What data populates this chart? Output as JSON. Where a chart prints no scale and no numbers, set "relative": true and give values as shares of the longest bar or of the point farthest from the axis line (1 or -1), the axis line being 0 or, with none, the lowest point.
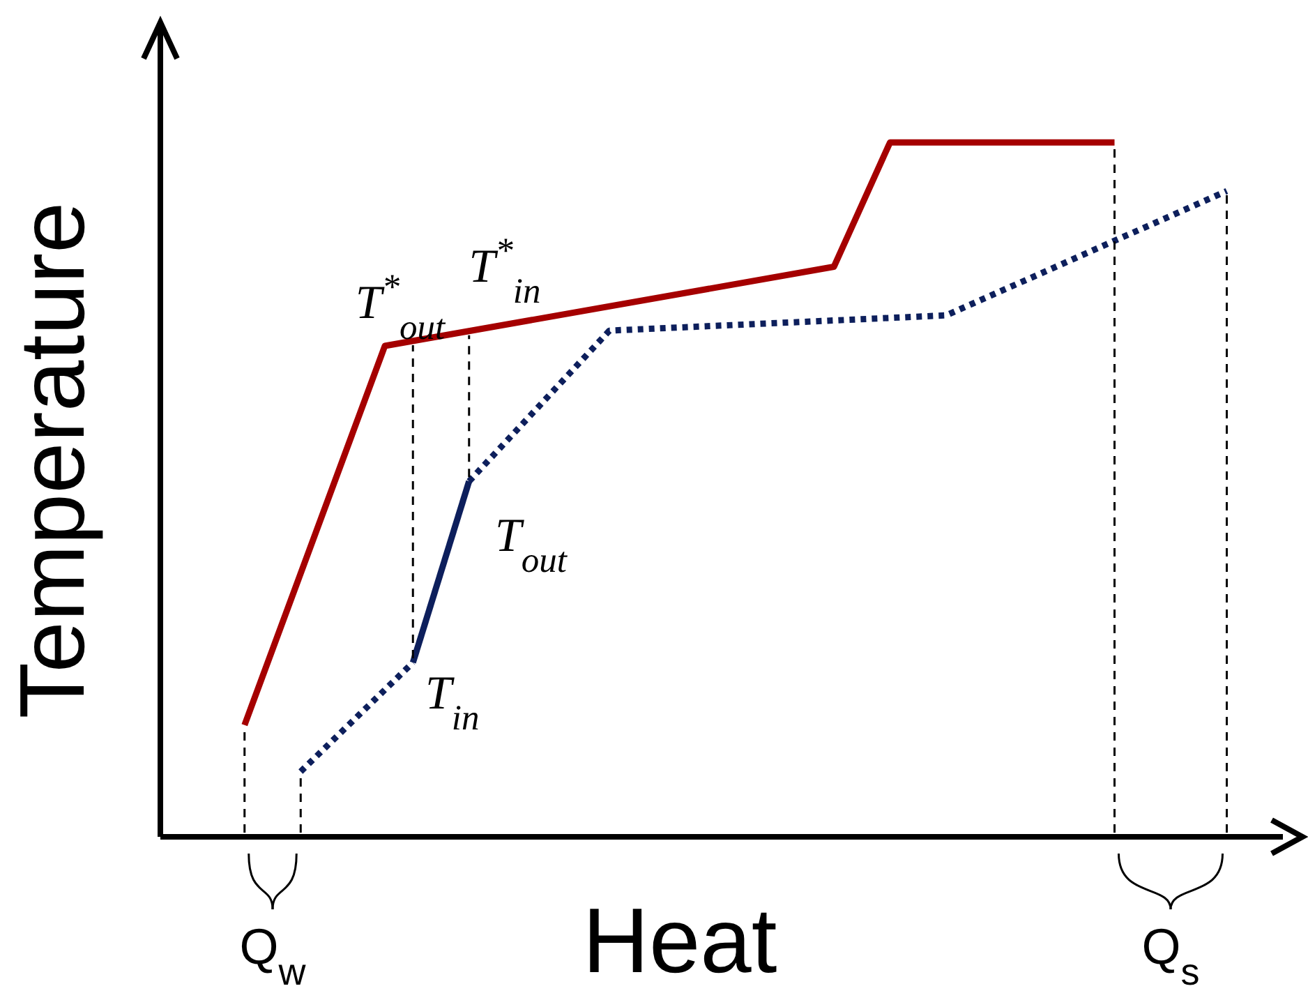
{
  "chart_data": {
    "type": "line",
    "relative": true,
    "xlabel": "Heat",
    "ylabel": "Temperature",
    "grid": false,
    "marker": "none",
    "categories": [
      null,
      null,
      null,
      null,
      null,
      null,
      null,
      null,
      null,
      null,
      null,
      null,
      null,
      null,
      null,
      null,
      null,
      null,
      null,
      null,
      null,
      null,
      null,
      null,
      null,
      null,
      null,
      null,
      null,
      null,
      null,
      null,
      null,
      null,
      null,
      null,
      null,
      null,
      null,
      null,
      null
    ],
    "series": [
      {
        "color": "#a50000",
        "line_style": "solid",
        "values": [
          null,
          null,
          null,
          0.161,
          null,
          null,
          null,
          null,
          0.707,
          null,
          null,
          null,
          null,
          null,
          null,
          null,
          null,
          null,
          null,
          null,
          null,
          null,
          null,
          null,
          0.821,
          null,
          1,
          null,
          null,
          null,
          null,
          null,
          null,
          null,
          1,
          null,
          null,
          null,
          null,
          null,
          null
        ]
      },
      {
        "color": "#0d1f5c",
        "line_style": "dotted",
        "values": [
          null,
          null,
          null,
          null,
          null,
          0.094,
          null,
          null,
          null,
          0.251,
          null,
          null,
          null,
          null,
          null,
          null,
          null,
          null,
          null,
          null,
          null,
          null,
          null,
          null,
          null,
          null,
          null,
          null,
          null,
          null,
          null,
          null,
          null,
          null,
          null,
          null,
          null,
          null,
          null,
          null,
          null
        ]
      },
      {
        "color": "#0d1f5c",
        "line_style": "solid",
        "values": [
          null,
          null,
          null,
          null,
          null,
          null,
          null,
          null,
          null,
          0.251,
          null,
          0.512,
          null,
          null,
          null,
          null,
          null,
          null,
          null,
          null,
          null,
          null,
          null,
          null,
          null,
          null,
          null,
          null,
          null,
          null,
          null,
          null,
          null,
          null,
          null,
          null,
          null,
          null,
          null,
          null,
          null
        ]
      },
      {
        "color": "#0d1f5c",
        "line_style": "dotted",
        "values": [
          null,
          null,
          null,
          null,
          null,
          null,
          null,
          null,
          null,
          null,
          null,
          0.512,
          null,
          null,
          null,
          null,
          0.729,
          null,
          null,
          null,
          null,
          null,
          null,
          null,
          null,
          null,
          null,
          null,
          0.751,
          null,
          null,
          null,
          null,
          null,
          null,
          null,
          null,
          null,
          0.93,
          null,
          null
        ]
      }
    ],
    "annotations": [
      "T$^{*}$$_{out}$",
      "T$^{*}$$_{in}$",
      "T$_{out}$",
      "T$_{in}$",
      "Q$_{w}$",
      "Q$_{s}$"
    ]
  }
}
